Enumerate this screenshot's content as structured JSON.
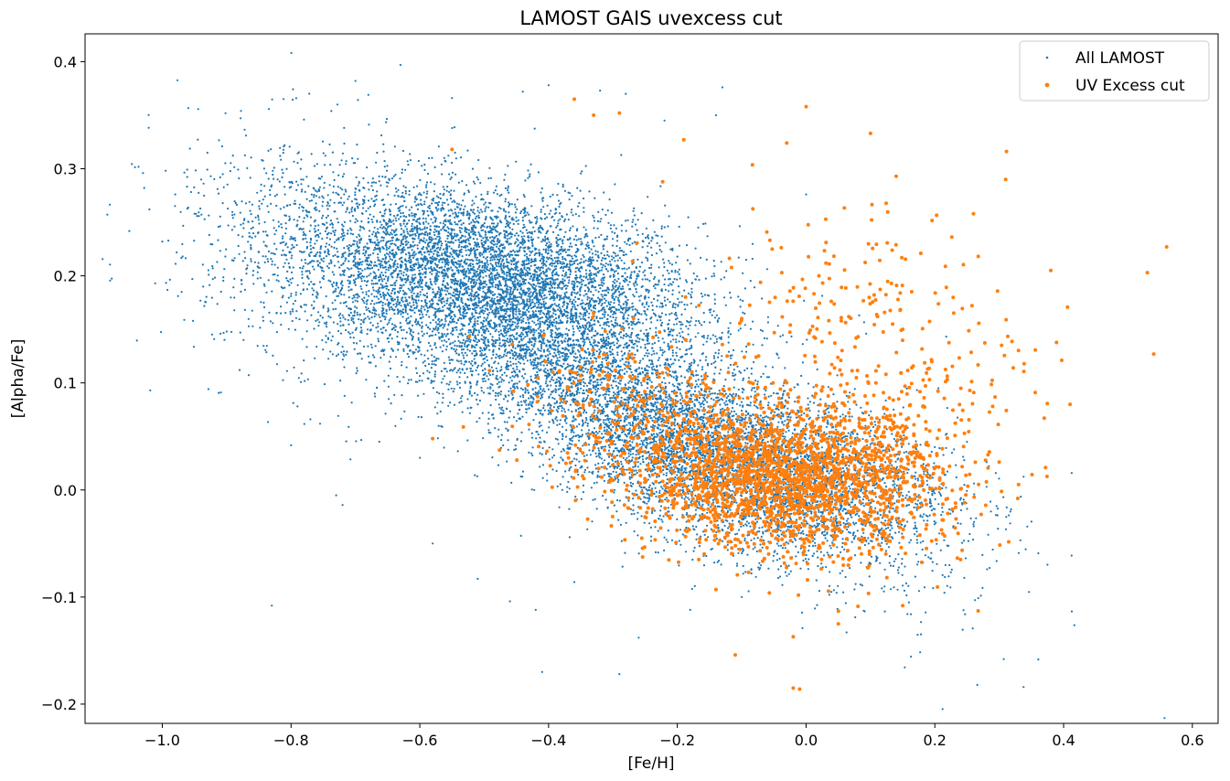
{
  "chart_data": {
    "type": "scatter",
    "title": "LAMOST GAIS uvexcess cut",
    "xlabel": "[Fe/H]",
    "ylabel": "[Alpha/Fe]",
    "xlim": [
      -1.12,
      0.64
    ],
    "ylim": [
      -0.218,
      0.426
    ],
    "xticks": [
      -1.0,
      -0.8,
      -0.6,
      -0.4,
      -0.2,
      0.0,
      0.2,
      0.4,
      0.6
    ],
    "xtick_labels": [
      "−1.0",
      "−0.8",
      "−0.6",
      "−0.4",
      "−0.2",
      "0.0",
      "0.2",
      "0.4",
      "0.6"
    ],
    "yticks": [
      -0.2,
      -0.1,
      0.0,
      0.1,
      0.2,
      0.3,
      0.4
    ],
    "ytick_labels": [
      "−0.2",
      "−0.1",
      "0.0",
      "0.1",
      "0.2",
      "0.3",
      "0.4"
    ],
    "grid": false,
    "legend_position": "top-right",
    "series": [
      {
        "name": "All LAMOST",
        "color": "#1f77b4",
        "marker_size": "small",
        "points": [
          [
            -1.03,
            0.296
          ],
          [
            -1.02,
            0.262
          ],
          [
            -1.0,
            0.232
          ],
          [
            -0.98,
            0.276
          ],
          [
            -0.97,
            0.185
          ],
          [
            -0.95,
            0.258
          ],
          [
            -0.93,
            0.315
          ],
          [
            -0.91,
            0.292
          ],
          [
            -0.9,
            0.148
          ],
          [
            -0.88,
            0.112
          ],
          [
            -0.87,
            0.331
          ],
          [
            -0.85,
            0.222
          ],
          [
            -0.83,
            -0.108
          ],
          [
            -0.81,
            0.322
          ],
          [
            -0.8,
            0.283
          ],
          [
            -0.79,
            0.078
          ],
          [
            -0.78,
            0.346
          ],
          [
            -0.77,
            0.066
          ],
          [
            -0.73,
            -0.005
          ],
          [
            -0.72,
            -0.014
          ],
          [
            -0.7,
            0.382
          ],
          [
            -0.68,
            0.369
          ],
          [
            -0.67,
            0.09
          ],
          [
            -0.63,
            0.397
          ],
          [
            -0.6,
            0.03
          ],
          [
            -0.58,
            -0.05
          ],
          [
            -0.55,
            0.366
          ],
          [
            -0.51,
            -0.083
          ],
          [
            -0.46,
            -0.104
          ],
          [
            -0.44,
            0.372
          ],
          [
            -0.42,
            -0.112
          ],
          [
            -0.41,
            -0.17
          ],
          [
            -0.4,
            0.378
          ],
          [
            -0.36,
            -0.086
          ],
          [
            -0.32,
            0.373
          ],
          [
            -0.29,
            -0.172
          ],
          [
            -0.28,
            0.37
          ],
          [
            -0.26,
            -0.138
          ],
          [
            -0.22,
            0.345
          ],
          [
            -0.18,
            -0.112
          ],
          [
            -0.13,
            0.376
          ],
          [
            -0.1,
            -0.1
          ],
          [
            0.0,
            0.276
          ],
          [
            0.03,
            -0.045
          ],
          [
            0.1,
            -0.03
          ],
          [
            0.2,
            0.04
          ],
          [
            0.25,
            0.045
          ],
          [
            -0.14,
            0.35
          ]
        ]
      },
      {
        "name": "UV Excess cut",
        "color": "#ff7f0e",
        "marker_size": "large",
        "points": [
          [
            -0.36,
            0.365
          ],
          [
            -0.33,
            0.35
          ],
          [
            -0.29,
            0.352
          ],
          [
            -0.19,
            0.327
          ],
          [
            0.0,
            0.358
          ],
          [
            0.1,
            0.333
          ],
          [
            -0.03,
            0.324
          ],
          [
            0.31,
            0.29
          ],
          [
            0.14,
            0.293
          ],
          [
            0.26,
            0.258
          ],
          [
            0.56,
            0.227
          ],
          [
            0.53,
            0.203
          ],
          [
            0.38,
            0.205
          ],
          [
            0.54,
            0.127
          ],
          [
            0.41,
            0.08
          ],
          [
            0.37,
            0.067
          ],
          [
            0.33,
            0.005
          ],
          [
            0.3,
            0.026
          ],
          [
            0.24,
            -0.065
          ],
          [
            0.15,
            -0.108
          ],
          [
            0.05,
            -0.125
          ],
          [
            -0.02,
            -0.137
          ],
          [
            -0.11,
            -0.154
          ],
          [
            -0.02,
            -0.185
          ],
          [
            -0.01,
            -0.186
          ],
          [
            -0.14,
            -0.093
          ],
          [
            -0.55,
            0.318
          ],
          [
            -0.58,
            0.048
          ],
          [
            -0.1,
            0.16
          ],
          [
            0.02,
            0.2
          ],
          [
            0.15,
            0.15
          ]
        ]
      }
    ]
  }
}
